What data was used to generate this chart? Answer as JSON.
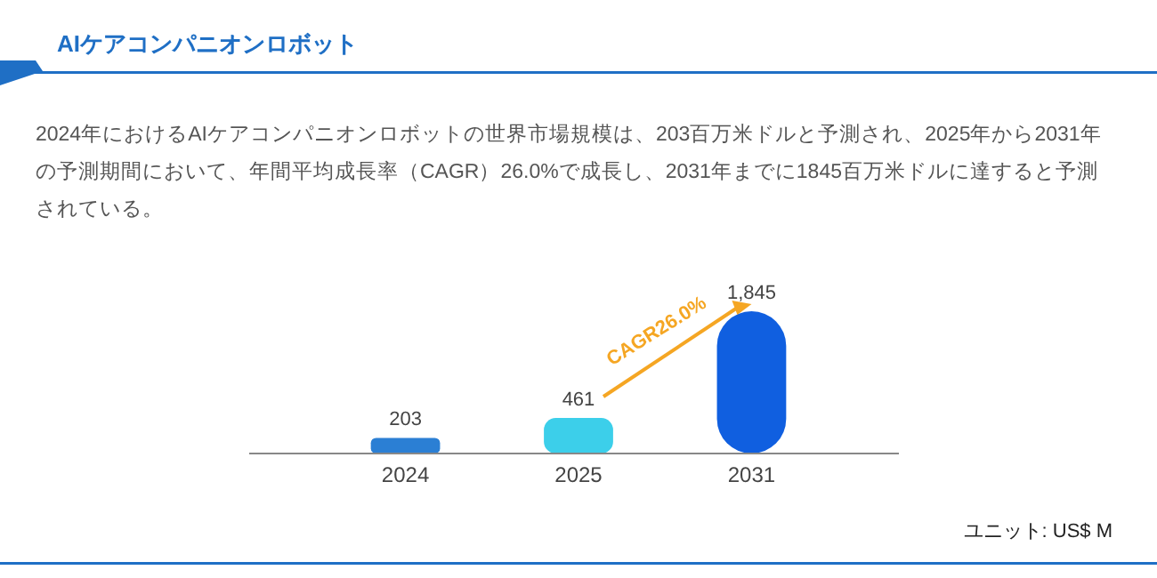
{
  "chart_data": {
    "type": "bar",
    "title": "AIケアコンパニオンロボット",
    "subtitle": "2024年におけるAIケアコンパニオンロボットの世界市場規模は、203百万米ドルと予測され、2025年から2031年の予測期間において、年間平均成長率（CAGR）26.0%で成長し、2031年までに1845百万米ドルに達すると予測されている。",
    "categories": [
      "2024",
      "2025",
      "2031"
    ],
    "values": [
      203,
      461,
      1845
    ],
    "colors": [
      "#2b7fd4",
      "#3ccfea",
      "#105fe0"
    ],
    "value_labels": [
      "203",
      "461",
      "1,845"
    ],
    "annotations": [
      "CAGR26.0%",
      "ユニット: US$ M"
    ]
  }
}
